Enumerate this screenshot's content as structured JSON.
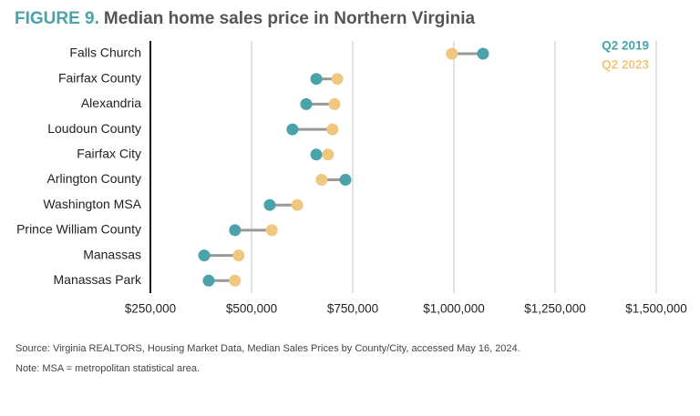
{
  "chart_data": {
    "type": "dumbbell",
    "figure_label": "FIGURE 9.",
    "title": "Median home sales price in Northern Virginia",
    "categories": [
      "Falls Church",
      "Fairfax County",
      "Alexandria",
      "Loudoun County",
      "Fairfax City",
      "Arlington County",
      "Washington MSA",
      "Prince William County",
      "Manassas",
      "Manassas Park"
    ],
    "series": [
      {
        "name": "Q2 2019",
        "color": "#4aa3ab",
        "values": [
          1072000,
          660000,
          635000,
          601000,
          660000,
          732000,
          545000,
          459000,
          383000,
          394000
        ]
      },
      {
        "name": "Q2 2023",
        "color": "#f0c77e",
        "values": [
          995000,
          712000,
          705000,
          700000,
          689000,
          673000,
          613000,
          550000,
          468000,
          459000
        ]
      }
    ],
    "xlim": [
      250000,
      1500000
    ],
    "xticks": [
      {
        "value": 250000,
        "label": "$250,000"
      },
      {
        "value": 500000,
        "label": "$500,000"
      },
      {
        "value": 750000,
        "label": "$750,000"
      },
      {
        "value": 1000000,
        "label": "$1,000,000"
      },
      {
        "value": 1250000,
        "label": "$1,250,000"
      },
      {
        "value": 1500000,
        "label": "$1,500,000"
      }
    ],
    "grid": true,
    "source": "Source: Virginia REALTORS, Housing Market Data, Median Sales Prices by County/City, accessed May 16, 2024.",
    "note": "Note: MSA = metropolitan statistical area."
  }
}
